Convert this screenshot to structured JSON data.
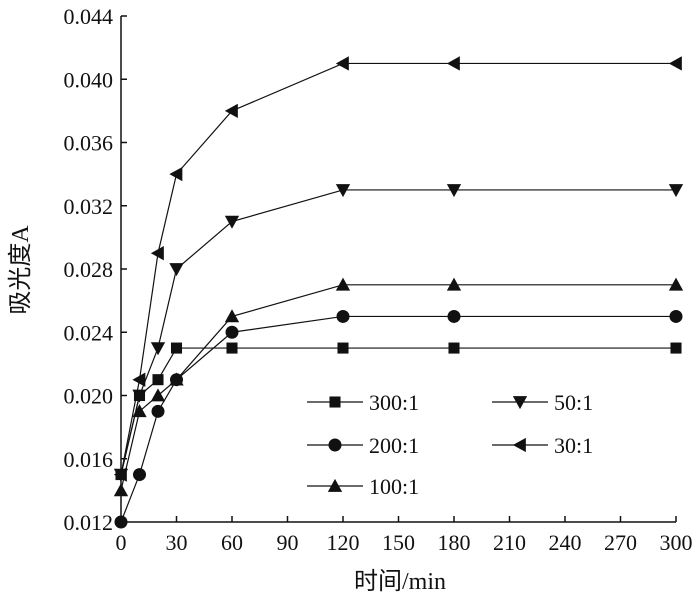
{
  "chart_data": {
    "type": "line",
    "title": "",
    "xlabel": "时间/min",
    "ylabel": "吸光度A",
    "xlim": [
      0,
      300
    ],
    "ylim": [
      0.012,
      0.044
    ],
    "xticks": [
      0,
      30,
      60,
      90,
      120,
      150,
      180,
      210,
      240,
      270,
      300
    ],
    "xtick_labels": [
      "0",
      "30",
      "60",
      "90",
      "120",
      "150",
      "180",
      "210",
      "240",
      "270",
      "300"
    ],
    "yticks": [
      0.012,
      0.016,
      0.02,
      0.024,
      0.028,
      0.032,
      0.036,
      0.04,
      0.044
    ],
    "ytick_labels": [
      "0.012",
      "0.016",
      "0.020",
      "0.024",
      "0.028",
      "0.032",
      "0.036",
      "0.040",
      "0.044"
    ],
    "grid": false,
    "legend_position": "center-right",
    "x": [
      0,
      10,
      20,
      30,
      60,
      120,
      180,
      300
    ],
    "series": [
      {
        "name": "300:1",
        "marker": "square",
        "values": [
          0.015,
          0.02,
          0.021,
          0.023,
          0.023,
          0.023,
          0.023,
          0.023
        ]
      },
      {
        "name": "200:1",
        "marker": "circle",
        "values": [
          0.012,
          0.015,
          0.019,
          0.021,
          0.024,
          0.025,
          0.025,
          0.025
        ]
      },
      {
        "name": "100:1",
        "marker": "triangle-up",
        "values": [
          0.014,
          0.019,
          0.02,
          0.021,
          0.025,
          0.027,
          0.027,
          0.027
        ]
      },
      {
        "name": "50:1",
        "marker": "triangle-down",
        "values": [
          0.015,
          0.02,
          0.023,
          0.028,
          0.031,
          0.033,
          0.033,
          0.033
        ]
      },
      {
        "name": "30:1",
        "marker": "triangle-left",
        "values": [
          0.015,
          0.021,
          0.029,
          0.034,
          0.038,
          0.041,
          0.041,
          0.041
        ]
      }
    ]
  }
}
